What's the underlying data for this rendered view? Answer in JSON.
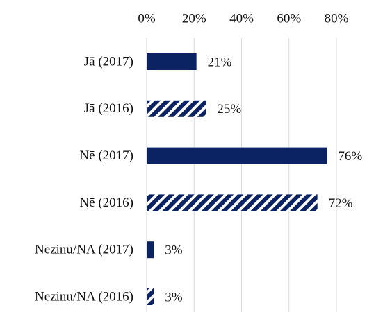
{
  "chart_data": {
    "type": "hbar",
    "categories": [
      "Jā (2017)",
      "Jā (2016)",
      "Nē (2017)",
      "Nē (2016)",
      "Nezinu/NA (2017)",
      "Nezinu/NA (2016)"
    ],
    "values": [
      21,
      25,
      76,
      72,
      3,
      3
    ],
    "value_labels": [
      "21%",
      "25%",
      "76%",
      "72%",
      "3%",
      "3%"
    ],
    "bar_styles": [
      "solid",
      "hatched",
      "solid",
      "hatched",
      "solid",
      "hatched"
    ],
    "color": "#0b2263",
    "xlim": [
      0,
      80
    ],
    "xticks": [
      {
        "value": 0,
        "label": "0%"
      },
      {
        "value": 20,
        "label": "20%"
      },
      {
        "value": 40,
        "label": "40%"
      },
      {
        "value": 60,
        "label": "60%"
      },
      {
        "value": 80,
        "label": "80%"
      }
    ],
    "grid": true
  }
}
